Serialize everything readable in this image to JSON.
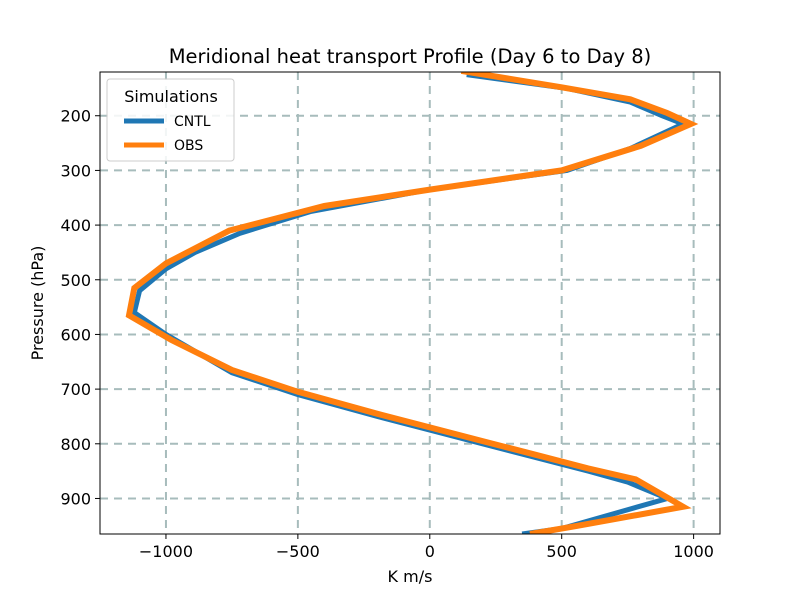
{
  "chart_data": {
    "type": "line",
    "title": "Meridional heat transport Profile (Day 6 to Day 8)",
    "xlabel": "K m/s",
    "ylabel": "Pressure (hPa)",
    "xlim": [
      -1250,
      1100
    ],
    "ylim": [
      965,
      120
    ],
    "y_inverted": true,
    "grid": true,
    "xticks": [
      -1000,
      -500,
      0,
      500,
      1000
    ],
    "xtick_labels": [
      "−1000",
      "−500",
      "0",
      "500",
      "1000"
    ],
    "yticks": [
      200,
      300,
      400,
      500,
      600,
      700,
      800,
      900
    ],
    "ytick_labels": [
      "200",
      "300",
      "400",
      "500",
      "600",
      "700",
      "800",
      "900"
    ],
    "legend": {
      "title": "Simulations",
      "position": "top-left"
    },
    "series": [
      {
        "name": "CNTL",
        "color": "#1f77b4",
        "points": [
          [
            140,
            125
          ],
          [
            520,
            150
          ],
          [
            760,
            175
          ],
          [
            880,
            200
          ],
          [
            960,
            215
          ],
          [
            760,
            260
          ],
          [
            520,
            300
          ],
          [
            0,
            335
          ],
          [
            -450,
            375
          ],
          [
            -720,
            415
          ],
          [
            -890,
            450
          ],
          [
            -1000,
            480
          ],
          [
            -1100,
            520
          ],
          [
            -1120,
            560
          ],
          [
            -1000,
            600
          ],
          [
            -750,
            670
          ],
          [
            -500,
            710
          ],
          [
            -200,
            750
          ],
          [
            0,
            775
          ],
          [
            200,
            800
          ],
          [
            400,
            825
          ],
          [
            600,
            850
          ],
          [
            750,
            870
          ],
          [
            900,
            900
          ],
          [
            500,
            955
          ],
          [
            350,
            965
          ]
        ]
      },
      {
        "name": "OBS",
        "color": "#ff7f0e",
        "points": [
          [
            120,
            118
          ],
          [
            500,
            148
          ],
          [
            760,
            170
          ],
          [
            900,
            195
          ],
          [
            990,
            215
          ],
          [
            800,
            255
          ],
          [
            500,
            300
          ],
          [
            0,
            335
          ],
          [
            -400,
            365
          ],
          [
            -760,
            410
          ],
          [
            -880,
            440
          ],
          [
            -1000,
            470
          ],
          [
            -1120,
            515
          ],
          [
            -1140,
            565
          ],
          [
            -980,
            610
          ],
          [
            -750,
            665
          ],
          [
            -500,
            705
          ],
          [
            -200,
            745
          ],
          [
            0,
            770
          ],
          [
            200,
            795
          ],
          [
            400,
            820
          ],
          [
            600,
            845
          ],
          [
            780,
            865
          ],
          [
            960,
            915
          ],
          [
            560,
            950
          ],
          [
            380,
            965
          ]
        ]
      }
    ]
  }
}
